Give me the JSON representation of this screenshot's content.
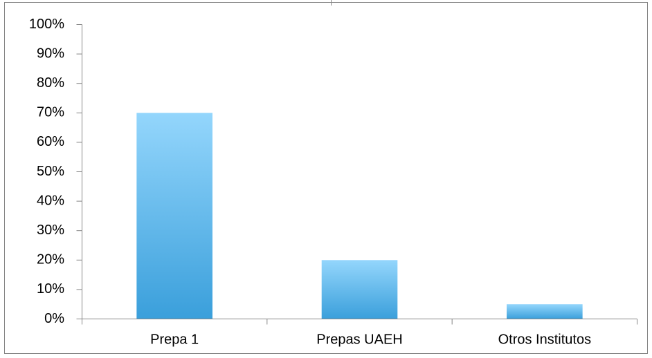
{
  "chart_data": {
    "type": "bar",
    "categories": [
      "Prepa 1",
      "Prepas UAEH",
      "Otros Institutos"
    ],
    "values": [
      70,
      20,
      5
    ],
    "color": "#3a9fdb",
    "ylim": [
      0,
      100
    ],
    "yticks": [
      {
        "value": 0,
        "label": "0%"
      },
      {
        "value": 10,
        "label": "10%"
      },
      {
        "value": 20,
        "label": "20%"
      },
      {
        "value": 30,
        "label": "30%"
      },
      {
        "value": 40,
        "label": "40%"
      },
      {
        "value": 50,
        "label": "50%"
      },
      {
        "value": 60,
        "label": "60%"
      },
      {
        "value": 70,
        "label": "70%"
      },
      {
        "value": 80,
        "label": "80%"
      },
      {
        "value": 90,
        "label": "90%"
      },
      {
        "value": 100,
        "label": "100%"
      }
    ],
    "grid": false
  }
}
